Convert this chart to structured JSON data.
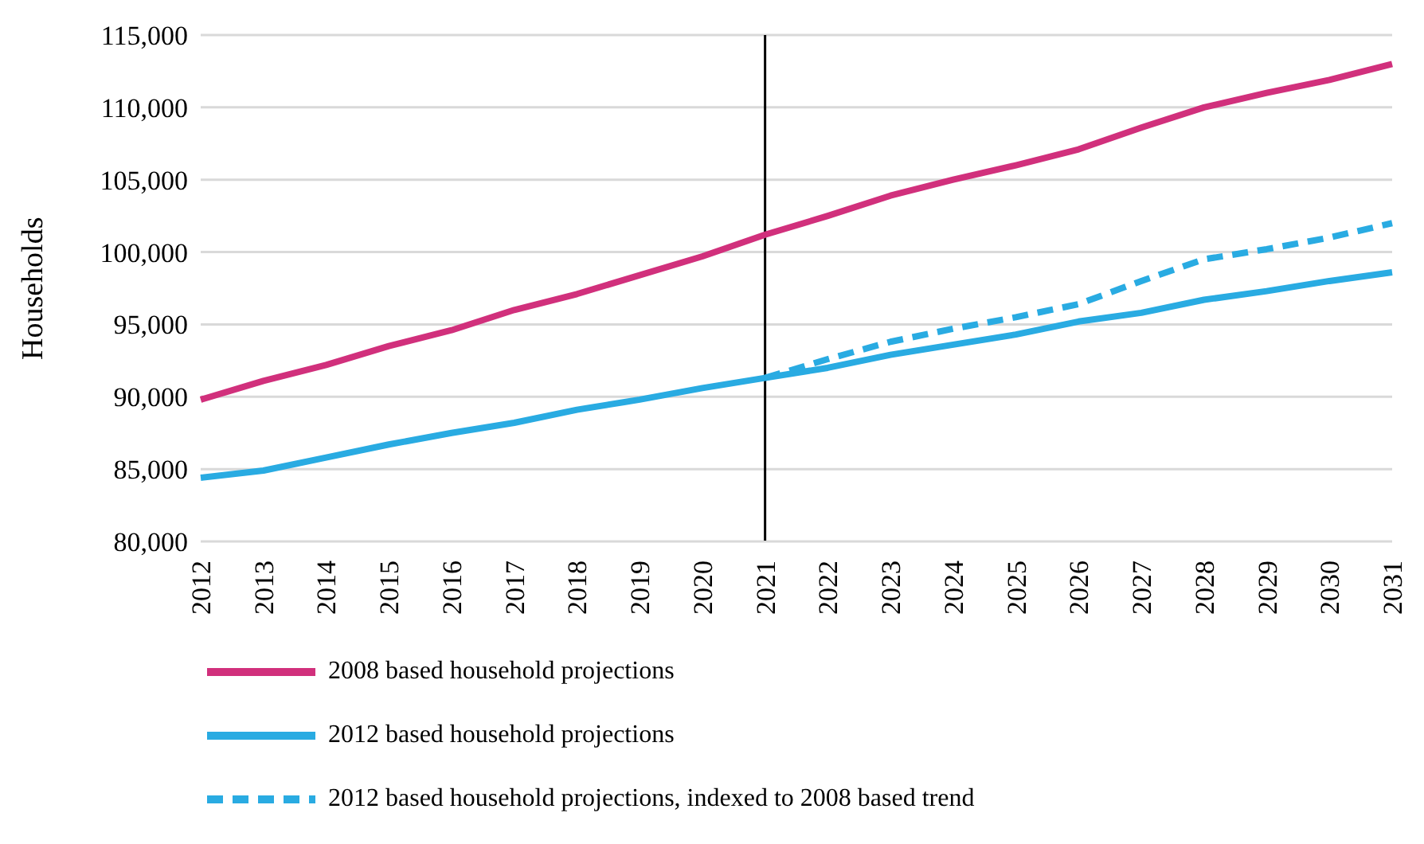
{
  "chart_data": {
    "type": "line",
    "ylabel": "Households",
    "categories": [
      "2012",
      "2013",
      "2014",
      "2015",
      "2016",
      "2017",
      "2018",
      "2019",
      "2020",
      "2021",
      "2022",
      "2023",
      "2024",
      "2025",
      "2026",
      "2027",
      "2028",
      "2029",
      "2030",
      "2031"
    ],
    "series": [
      {
        "name": "2008 based household projections",
        "color": "#d1307c",
        "values": [
          89800,
          91100,
          92200,
          93500,
          94600,
          96000,
          97100,
          98400,
          99700,
          101200,
          102500,
          103900,
          105000,
          106000,
          107100,
          108600,
          110000,
          111000,
          111900,
          113000
        ]
      },
      {
        "name": "2012 based household projections",
        "color": "#29abe2",
        "values": [
          84400,
          84900,
          85800,
          86700,
          87500,
          88200,
          89100,
          89800,
          90600,
          91300,
          92000,
          92900,
          93600,
          94300,
          95200,
          95800,
          96700,
          97300,
          98000,
          98600
        ]
      },
      {
        "name": "2012 based household projections, indexed to 2008 based trend",
        "color": "#29abe2",
        "line_style": "dashed",
        "values": [
          null,
          null,
          null,
          null,
          null,
          null,
          null,
          null,
          null,
          91300,
          92600,
          93800,
          94700,
          95500,
          96400,
          98000,
          99500,
          100200,
          101000,
          102000
        ]
      }
    ],
    "ylim": [
      80000,
      115000
    ],
    "yticks": [
      {
        "value": 80000,
        "label": "80,000"
      },
      {
        "value": 85000,
        "label": "85,000"
      },
      {
        "value": 90000,
        "label": "90,000"
      },
      {
        "value": 95000,
        "label": "95,000"
      },
      {
        "value": 100000,
        "label": "100,000"
      },
      {
        "value": 105000,
        "label": "105,000"
      },
      {
        "value": 110000,
        "label": "110,000"
      },
      {
        "value": 115000,
        "label": "115,000"
      }
    ],
    "grid": "y",
    "legend": "bottom",
    "marker": "none",
    "ref_lines": [
      {
        "axis": "x",
        "value": "2021",
        "color": "#000000"
      }
    ]
  }
}
